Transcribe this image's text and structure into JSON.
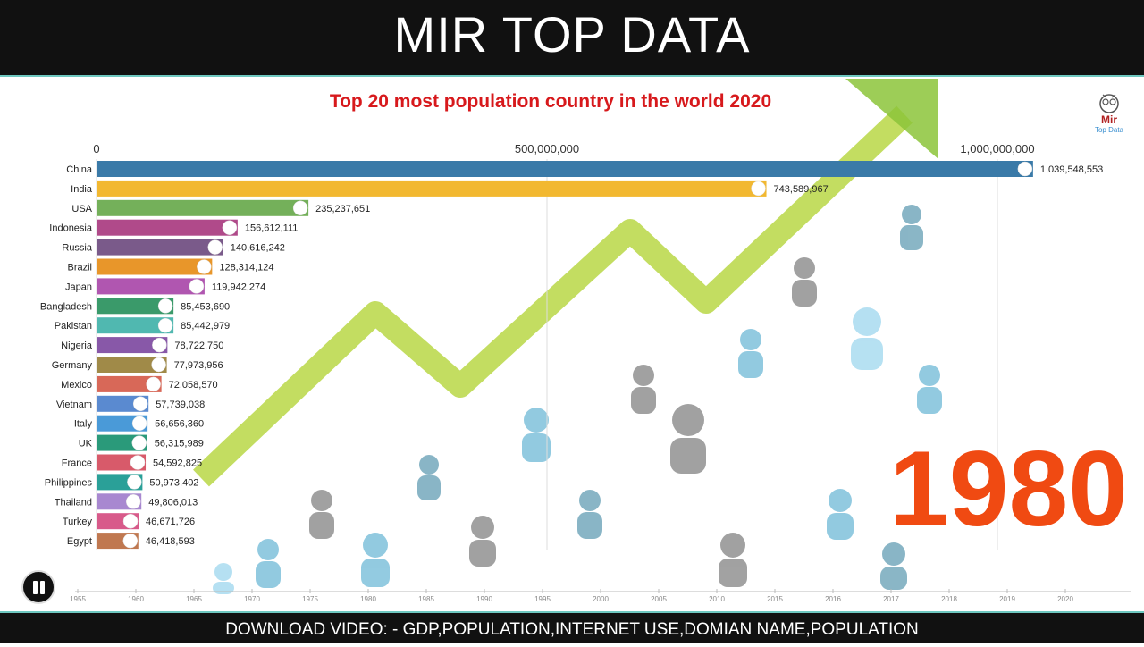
{
  "header": {
    "title": "MIR TOP DATA"
  },
  "logo": {
    "word": "Mir",
    "sub": "Top Data"
  },
  "footer": {
    "text": "DOWNLOAD VIDEO: - GDP,POPULATION,INTERNET USE,DOMIAN NAME,POPULATION"
  },
  "chart_data": {
    "type": "bar",
    "orientation": "horizontal",
    "title": "Top 20 most population country in the world 2020",
    "xlabel": "",
    "ylabel": "",
    "xlim": [
      0,
      1000000000
    ],
    "x_ticks": [
      "0",
      "500,000,000",
      "1,000,000,000"
    ],
    "x_tick_values": [
      0,
      500000000,
      1000000000
    ],
    "current_year": "1980",
    "categories": [
      "China",
      "India",
      "USA",
      "Indonesia",
      "Russia",
      "Brazil",
      "Japan",
      "Bangladesh",
      "Pakistan",
      "Nigeria",
      "Germany",
      "Mexico",
      "Vietnam",
      "Italy",
      "UK",
      "France",
      "Philippines",
      "Thailand",
      "Turkey",
      "Egypt"
    ],
    "values": [
      1039548553,
      743589967,
      235237651,
      156612111,
      140616242,
      128314124,
      119942274,
      85453690,
      85442979,
      78722750,
      77973956,
      72058570,
      57739038,
      56656360,
      56315989,
      54592825,
      50973402,
      49806013,
      46671726,
      46418593
    ],
    "value_labels": [
      "1,039,548,553",
      "743,589,967",
      "235,237,651",
      "156,612,111",
      "140,616,242",
      "128,314,124",
      "119,942,274",
      "85,453,690",
      "85,442,979",
      "78,722,750",
      "77,973,956",
      "72,058,570",
      "57,739,038",
      "56,656,360",
      "56,315,989",
      "54,592,825",
      "50,973,402",
      "49,806,013",
      "46,671,726",
      "46,418,593"
    ],
    "colors": [
      "#3a7aa8",
      "#f2b830",
      "#74b05a",
      "#b04a8a",
      "#7a5a8a",
      "#e8962a",
      "#b056b0",
      "#3a9a6a",
      "#50b8b0",
      "#8858a8",
      "#a08a48",
      "#d86858",
      "#5a8ad0",
      "#4a9ad8",
      "#2a9a7a",
      "#d85a6a",
      "#2aa098",
      "#a888d0",
      "#d85a8a",
      "#c07850"
    ],
    "timeline": [
      "1955",
      "1960",
      "1965",
      "1970",
      "1975",
      "1980",
      "1985",
      "1990",
      "1995",
      "2000",
      "2005",
      "2010",
      "2015",
      "2016",
      "2017",
      "2018",
      "2019",
      "2020"
    ],
    "grid": true,
    "legend": "none"
  }
}
